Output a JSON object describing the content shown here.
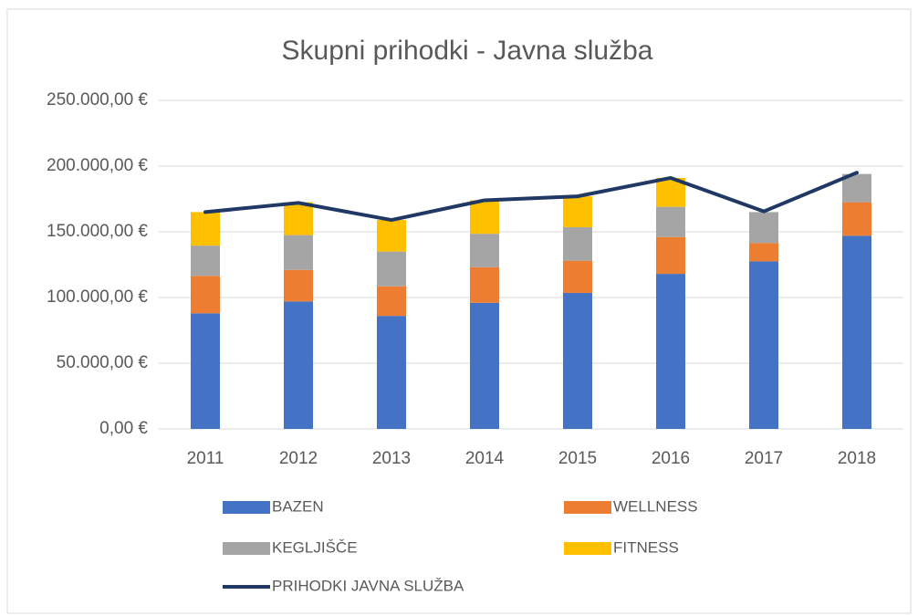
{
  "chart_data": {
    "type": "bar",
    "stacked": true,
    "title": "Skupni prihodki - Javna služba",
    "categories": [
      "2011",
      "2012",
      "2013",
      "2014",
      "2015",
      "2016",
      "2017",
      "2018"
    ],
    "series": [
      {
        "name": "BAZEN",
        "color": "#4472c4",
        "values": [
          88000,
          97000,
          86000,
          96000,
          103500,
          118000,
          127500,
          147000
        ]
      },
      {
        "name": "WELLNESS",
        "color": "#ed7d31",
        "values": [
          28500,
          24000,
          22500,
          27000,
          24500,
          28000,
          14000,
          25500
        ]
      },
      {
        "name": "KEGLJIŠČE",
        "color": "#a5a5a5",
        "values": [
          23000,
          26500,
          26500,
          25500,
          25500,
          23000,
          23500,
          21500
        ]
      },
      {
        "name": "FITNESS",
        "color": "#ffc000",
        "values": [
          25500,
          25000,
          24000,
          25500,
          23500,
          22000,
          0,
          0
        ]
      },
      {
        "name": "PRIHODKI JAVNA SLUŽBA",
        "type": "line",
        "color": "#203864",
        "values": [
          165000,
          172000,
          159000,
          174000,
          177000,
          191000,
          165500,
          195000
        ]
      }
    ],
    "ylim": [
      0,
      250000
    ],
    "yticks": [
      {
        "value": 0,
        "label": "0,00 €"
      },
      {
        "value": 50000,
        "label": "50.000,00 €"
      },
      {
        "value": 100000,
        "label": "100.000,00 €"
      },
      {
        "value": 150000,
        "label": "150.000,00 €"
      },
      {
        "value": 200000,
        "label": "200.000,00 €"
      },
      {
        "value": 250000,
        "label": "250.000,00 €"
      }
    ],
    "grid": true,
    "legend": "bottom"
  }
}
